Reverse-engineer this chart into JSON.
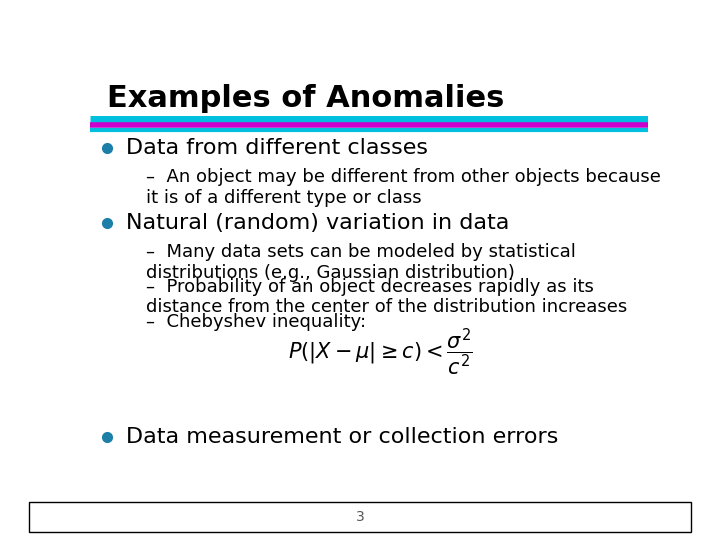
{
  "title": "Examples of Anomalies",
  "title_fontsize": 22,
  "title_color": "#000000",
  "bg_color": "#ffffff",
  "line1_color": "#00BFDF",
  "line2_color": "#CC00CC",
  "bullet_color": "#1B7FA8",
  "bullet1_text": "Data from different classes",
  "bullet1_sub": "An object may be different from other objects because\nit is of a different type or class",
  "bullet2_text": "Natural (random) variation in data",
  "bullet2_sub1": "Many data sets can be modeled by statistical\ndistributions (e.g., Gaussian distribution)",
  "bullet2_sub2": "Probability of an object decreases rapidly as its\ndistance from the center of the distribution increases",
  "bullet2_sub3": "Chebyshev inequality:",
  "formula": "$P(|X-\\mu|\\geq c)<\\dfrac{\\sigma^2}{c^2}$",
  "bullet3_text": "Data measurement or collection errors",
  "page_number": "3",
  "bullet_fontsize": 16,
  "sub_fontsize": 13
}
